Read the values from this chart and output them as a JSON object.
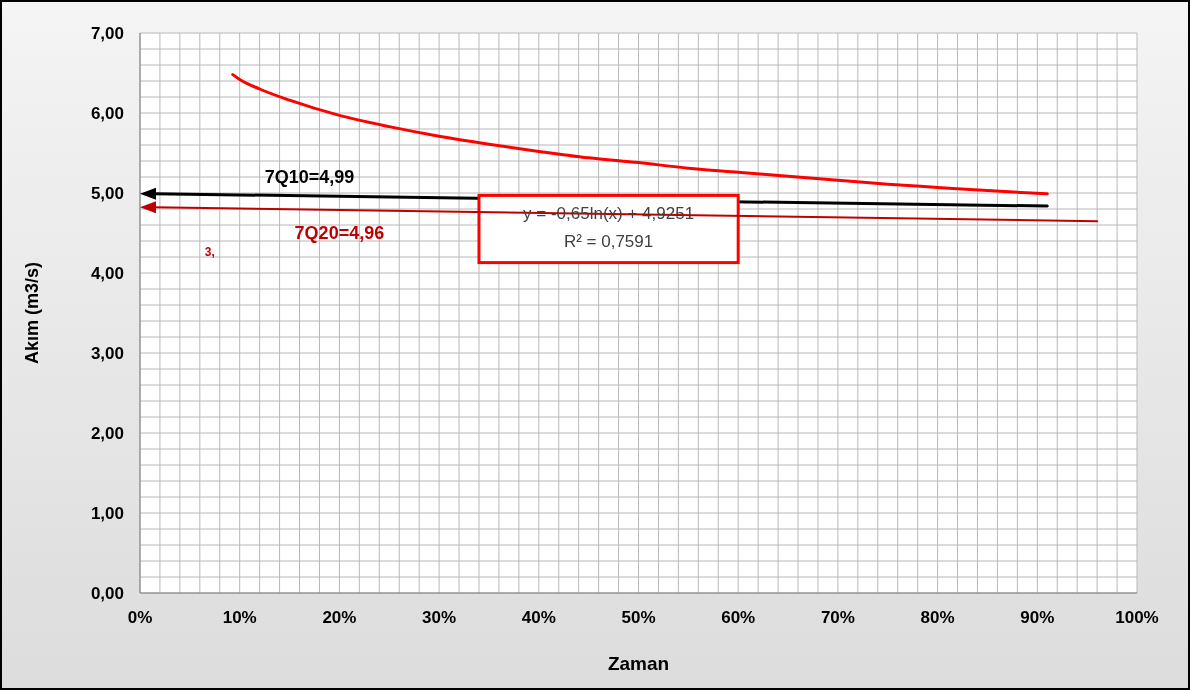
{
  "chart_data": {
    "type": "line",
    "xlabel": "Zaman",
    "ylabel": "Akım (m3/s)",
    "xlim": [
      0,
      100
    ],
    "xticks": [
      {
        "value": 0,
        "label": "0%"
      },
      {
        "value": 2,
        "label": null
      },
      {
        "value": 4,
        "label": null
      },
      {
        "value": 6,
        "label": null
      },
      {
        "value": 8,
        "label": null
      },
      {
        "value": 10,
        "label": "10%"
      },
      {
        "value": 12,
        "label": null
      },
      {
        "value": 14,
        "label": null
      },
      {
        "value": 16,
        "label": null
      },
      {
        "value": 18,
        "label": null
      },
      {
        "value": 20,
        "label": "20%"
      },
      {
        "value": 22,
        "label": null
      },
      {
        "value": 24,
        "label": null
      },
      {
        "value": 26,
        "label": null
      },
      {
        "value": 28,
        "label": null
      },
      {
        "value": 30,
        "label": "30%"
      },
      {
        "value": 32,
        "label": null
      },
      {
        "value": 34,
        "label": null
      },
      {
        "value": 36,
        "label": null
      },
      {
        "value": 38,
        "label": null
      },
      {
        "value": 40,
        "label": "40%"
      },
      {
        "value": 42,
        "label": null
      },
      {
        "value": 44,
        "label": null
      },
      {
        "value": 46,
        "label": null
      },
      {
        "value": 48,
        "label": null
      },
      {
        "value": 50,
        "label": "50%"
      },
      {
        "value": 52,
        "label": null
      },
      {
        "value": 54,
        "label": null
      },
      {
        "value": 56,
        "label": null
      },
      {
        "value": 58,
        "label": null
      },
      {
        "value": 60,
        "label": "60%"
      },
      {
        "value": 62,
        "label": null
      },
      {
        "value": 64,
        "label": null
      },
      {
        "value": 66,
        "label": null
      },
      {
        "value": 68,
        "label": null
      },
      {
        "value": 70,
        "label": "70%"
      },
      {
        "value": 72,
        "label": null
      },
      {
        "value": 74,
        "label": null
      },
      {
        "value": 76,
        "label": null
      },
      {
        "value": 78,
        "label": null
      },
      {
        "value": 80,
        "label": "80%"
      },
      {
        "value": 82,
        "label": null
      },
      {
        "value": 84,
        "label": null
      },
      {
        "value": 86,
        "label": null
      },
      {
        "value": 88,
        "label": null
      },
      {
        "value": 90,
        "label": "90%"
      },
      {
        "value": 92,
        "label": null
      },
      {
        "value": 94,
        "label": null
      },
      {
        "value": 96,
        "label": null
      },
      {
        "value": 98,
        "label": null
      },
      {
        "value": 100,
        "label": "100%"
      }
    ],
    "ylim": [
      0,
      7
    ],
    "yticks": [
      {
        "value": 0,
        "label": "0,00"
      },
      {
        "value": 0.2,
        "label": null
      },
      {
        "value": 0.4,
        "label": null
      },
      {
        "value": 0.6,
        "label": null
      },
      {
        "value": 0.8,
        "label": null
      },
      {
        "value": 1,
        "label": "1,00"
      },
      {
        "value": 1.2,
        "label": null
      },
      {
        "value": 1.4,
        "label": null
      },
      {
        "value": 1.6,
        "label": null
      },
      {
        "value": 1.8,
        "label": null
      },
      {
        "value": 2,
        "label": "2,00"
      },
      {
        "value": 2.2,
        "label": null
      },
      {
        "value": 2.4,
        "label": null
      },
      {
        "value": 2.6,
        "label": null
      },
      {
        "value": 2.8,
        "label": null
      },
      {
        "value": 3,
        "label": "3,00"
      },
      {
        "value": 3.2,
        "label": null
      },
      {
        "value": 3.4,
        "label": null
      },
      {
        "value": 3.6,
        "label": null
      },
      {
        "value": 3.8,
        "label": null
      },
      {
        "value": 4,
        "label": "4,00"
      },
      {
        "value": 4.2,
        "label": null
      },
      {
        "value": 4.4,
        "label": null
      },
      {
        "value": 4.6,
        "label": null
      },
      {
        "value": 4.8,
        "label": null
      },
      {
        "value": 5,
        "label": "5,00"
      },
      {
        "value": 5.2,
        "label": null
      },
      {
        "value": 5.4,
        "label": null
      },
      {
        "value": 5.6,
        "label": null
      },
      {
        "value": 5.8,
        "label": null
      },
      {
        "value": 6,
        "label": "6,00"
      },
      {
        "value": 6.2,
        "label": null
      },
      {
        "value": 6.4,
        "label": null
      },
      {
        "value": 6.6,
        "label": null
      },
      {
        "value": 6.8,
        "label": null
      },
      {
        "value": 7,
        "label": "7,00"
      }
    ],
    "grid": true,
    "legend": false,
    "marker": "none",
    "line_style": "solid",
    "series": [
      {
        "color": "#ff0000",
        "x": [
          9.3,
          10,
          12,
          15,
          20,
          25,
          30,
          35,
          40,
          45,
          50,
          55,
          60,
          65,
          70,
          75,
          80,
          85,
          91
        ],
        "values": [
          6.48,
          6.42,
          6.3,
          6.16,
          5.97,
          5.83,
          5.71,
          5.61,
          5.52,
          5.44,
          5.38,
          5.31,
          5.26,
          5.21,
          5.16,
          5.11,
          5.07,
          5.03,
          4.99
        ]
      }
    ],
    "annotations": [
      "7Q10=4,99",
      "7Q20=4,96",
      "y = -0,65ln(x) + 4,9251",
      "R² = 0,7591",
      "3,"
    ]
  }
}
